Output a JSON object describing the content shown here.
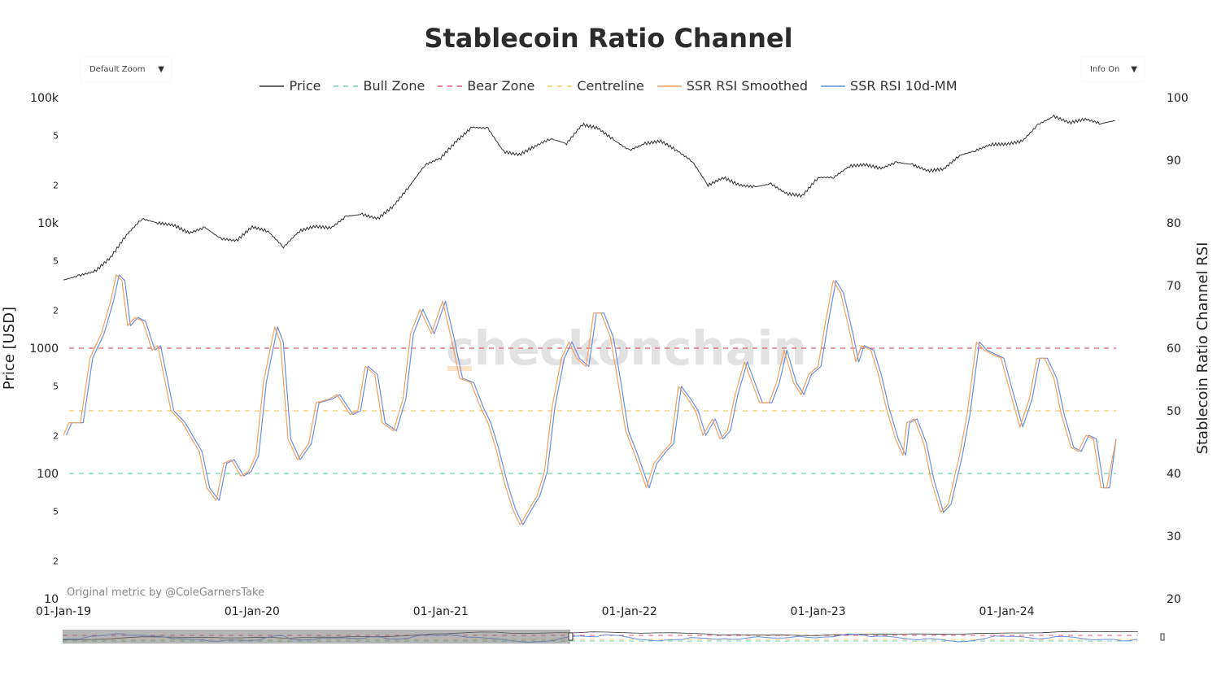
{
  "title": "Stablecoin Ratio Channel",
  "zoom_dropdown": {
    "label": "Default Zoom"
  },
  "info_dropdown": {
    "label": "Info On"
  },
  "watermark": "checkonchain",
  "credit": "Original metric by @ColeGarnersTake",
  "colors": {
    "price": "#333333",
    "bull": "#6fd6a8",
    "bear": "#e05a72",
    "centre": "#f6c76f",
    "smoothed": "#f4a060",
    "mm": "#6a8fdc"
  },
  "chart_data": {
    "type": "line",
    "title": "Stablecoin Ratio Channel",
    "ylabel": "Price [USD]",
    "y2label": "Stablecoin Ratio Channel RSI",
    "x_ticks": [
      "01-Jan-19",
      "01-Jan-20",
      "01-Jan-21",
      "01-Jan-22",
      "01-Jan-23",
      "01-Jan-24"
    ],
    "x_unit": "years since 01-Jan-19",
    "xlim": [
      0,
      5.58
    ],
    "ylim_log": [
      10,
      100000
    ],
    "y_ticks": [
      "100k",
      "5",
      "2",
      "10k",
      "5",
      "2",
      "1000",
      "5",
      "2",
      "100",
      "5",
      "2",
      "10"
    ],
    "y_tick_values": [
      100000,
      50000,
      20000,
      10000,
      5000,
      2000,
      1000,
      500,
      200,
      100,
      50,
      20,
      10
    ],
    "y2lim": [
      20,
      100
    ],
    "y2_ticks": [
      "100",
      "90",
      "80",
      "70",
      "60",
      "50",
      "40",
      "30",
      "20"
    ],
    "legend": [
      "Price",
      "Bull Zone",
      "Bear Zone",
      "Centreline",
      "SSR RSI Smoothed",
      "SSR RSI 10d-MM"
    ],
    "zones": {
      "bull": 40,
      "bear": 60,
      "centre": 50
    },
    "price": {
      "t_step_months": 1,
      "values": [
        3500,
        3800,
        4100,
        5300,
        8000,
        10800,
        10000,
        9600,
        8300,
        9200,
        7500,
        7200,
        9300,
        8600,
        6400,
        8600,
        9400,
        9100,
        11300,
        11700,
        10800,
        13700,
        19600,
        29000,
        33000,
        45000,
        58000,
        57000,
        37000,
        35000,
        41000,
        47000,
        43000,
        61000,
        57000,
        46000,
        38000,
        43000,
        45000,
        38000,
        31000,
        20000,
        23000,
        20000,
        19400,
        20500,
        17100,
        16500,
        23000,
        23100,
        28400,
        29200,
        27200,
        30500,
        29200,
        26000,
        27000,
        34500,
        37700,
        42300,
        42500,
        45000,
        61000,
        71000,
        63000,
        67500,
        62000,
        66000
      ]
    },
    "rsi_smoothed": {
      "t": [
        0,
        0.03,
        0.09,
        0.14,
        0.2,
        0.25,
        0.28,
        0.31,
        0.34,
        0.38,
        0.42,
        0.47,
        0.5,
        0.57,
        0.63,
        0.68,
        0.72,
        0.76,
        0.81,
        0.85,
        0.89,
        0.94,
        0.98,
        1.02,
        1.06,
        1.12,
        1.15,
        1.19,
        1.24,
        1.3,
        1.34,
        1.41,
        1.45,
        1.52,
        1.56,
        1.6,
        1.65,
        1.69,
        1.75,
        1.8,
        1.84,
        1.89,
        1.95,
        2.01,
        2.06,
        2.1,
        2.16,
        2.21,
        2.25,
        2.29,
        2.34,
        2.38,
        2.42,
        2.47,
        2.51,
        2.55,
        2.59,
        2.64,
        2.68,
        2.72,
        2.77,
        2.81,
        2.85,
        2.9,
        2.94,
        2.98,
        3.03,
        3.09,
        3.13,
        3.18,
        3.22,
        3.26,
        3.31,
        3.35,
        3.39,
        3.44,
        3.48,
        3.52,
        3.56,
        3.61,
        3.65,
        3.69,
        3.74,
        3.78,
        3.82,
        3.87,
        3.91,
        3.95,
        4.0,
        4.04,
        4.08,
        4.12,
        4.17,
        4.2,
        4.23,
        4.28,
        4.32,
        4.36,
        4.41,
        4.45,
        4.47,
        4.51,
        4.56,
        4.6,
        4.65,
        4.69,
        4.75,
        4.79,
        4.84,
        4.88,
        4.92,
        4.97,
        5.01,
        5.07,
        5.12,
        5.16,
        5.2,
        5.25,
        5.29,
        5.34,
        5.38,
        5.42,
        5.46,
        5.5,
        5.53,
        5.58
      ],
      "values": [
        46.1,
        48.1,
        48.1,
        58.4,
        62.3,
        67.5,
        71.7,
        70.8,
        63.6,
        64.9,
        64.3,
        59.7,
        60.4,
        50.0,
        48.1,
        45.5,
        43.5,
        37.7,
        35.7,
        41.6,
        42.2,
        39.6,
        40.3,
        42.9,
        54.5,
        63.4,
        61.0,
        45.5,
        42.2,
        44.8,
        51.3,
        51.9,
        52.6,
        49.4,
        50.0,
        57.1,
        55.8,
        48.1,
        46.8,
        51.9,
        62.3,
        66.2,
        62.3,
        67.5,
        61.0,
        55.2,
        54.5,
        50.6,
        48.1,
        44.2,
        38.3,
        34.4,
        31.8,
        34.4,
        36.4,
        40.3,
        50.6,
        58.4,
        61.0,
        58.4,
        57.1,
        65.6,
        65.6,
        61.7,
        54.5,
        46.8,
        42.9,
        37.7,
        41.6,
        43.5,
        44.8,
        53.9,
        51.9,
        50.0,
        46.1,
        48.7,
        45.5,
        46.8,
        52.6,
        57.8,
        54.5,
        51.3,
        51.3,
        54.5,
        59.7,
        54.5,
        52.6,
        55.8,
        57.1,
        64.3,
        70.8,
        68.8,
        62.3,
        57.8,
        60.4,
        59.7,
        55.8,
        50.6,
        45.5,
        42.9,
        48.1,
        48.7,
        44.8,
        38.9,
        33.8,
        35.1,
        42.9,
        49.4,
        61.0,
        59.7,
        59.1,
        58.4,
        53.9,
        47.4,
        51.9,
        58.4,
        58.4,
        55.2,
        49.4,
        44.2,
        43.5,
        46.1,
        45.5,
        37.7,
        37.7,
        45.5
      ]
    },
    "rsi_10d_mm": {
      "lag_years": 0.015,
      "source": "rsi_smoothed"
    }
  }
}
